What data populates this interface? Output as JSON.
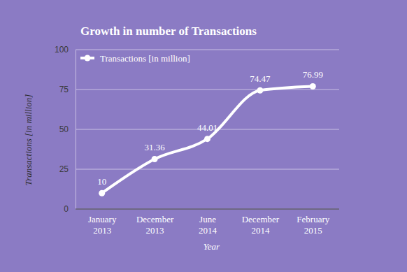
{
  "chart_data": {
    "type": "line",
    "title": "Growth in number of Transactions",
    "x_label": "Year",
    "y_label": "Transactions [in million]",
    "categories": [
      "January 2013",
      "December 2013",
      "June 2014",
      "December 2014",
      "February 2015"
    ],
    "series": [
      {
        "name": "Transactions [in million]",
        "color": "#ffffff",
        "marker": "circle",
        "line_style": "solid",
        "values": [
          10,
          31.36,
          44.01,
          74.47,
          76.99
        ]
      }
    ],
    "ylim": [
      0,
      100
    ],
    "yticks": [
      0,
      25,
      50,
      75,
      100
    ],
    "grid": true,
    "legend": "top-left",
    "data_labels": true
  }
}
